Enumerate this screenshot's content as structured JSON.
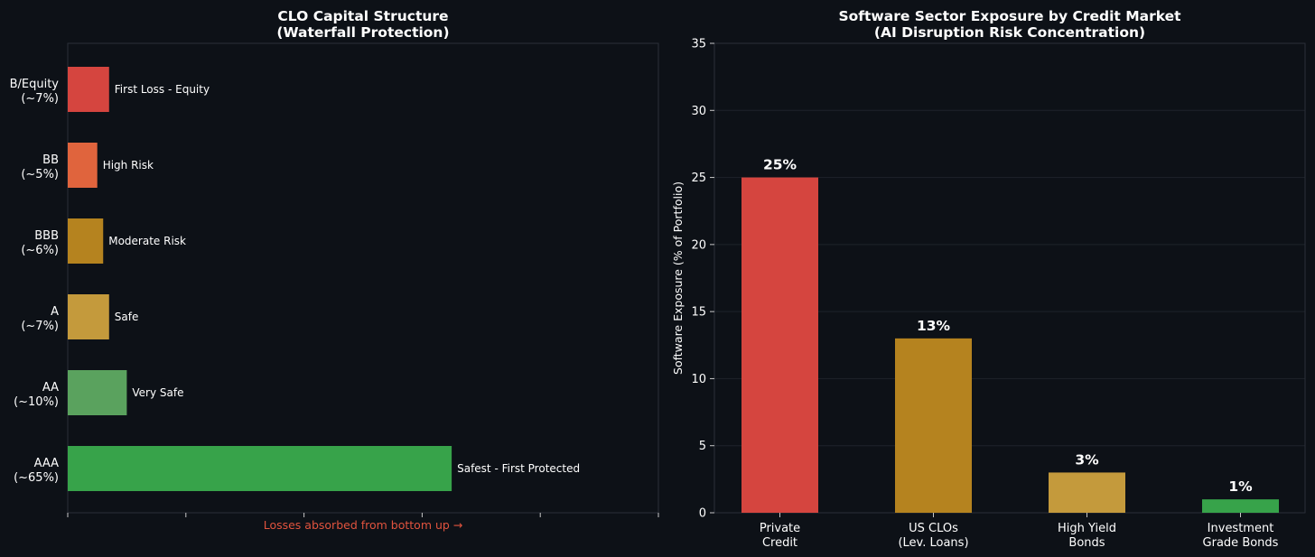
{
  "chart_data": [
    {
      "type": "bar",
      "orientation": "horizontal",
      "title": [
        "CLO Capital Structure",
        "(Waterfall Protection)"
      ],
      "categories": [
        [
          "AAA",
          "(~65%)"
        ],
        [
          "AA",
          "(~10%)"
        ],
        [
          "A",
          "(~7%)"
        ],
        [
          "BBB",
          "(~6%)"
        ],
        [
          "BB",
          "(~5%)"
        ],
        [
          "B/Equity",
          "(~7%)"
        ]
      ],
      "values": [
        65,
        10,
        7,
        6,
        5,
        7
      ],
      "annotations": [
        "Safest - First Protected",
        "Very Safe",
        "Safe",
        "Moderate Risk",
        "High Risk",
        "First Loss - Equity"
      ],
      "colors": [
        "#37a34a",
        "#5aa25e",
        "#c49a3c",
        "#b5831f",
        "#e0643d",
        "#d5453f"
      ],
      "xlim": [
        0,
        100
      ],
      "xticks": [
        0,
        20,
        40,
        60,
        80,
        100
      ],
      "xlabel": "Losses absorbed from bottom up →",
      "xlabel_color": "#e0533e"
    },
    {
      "type": "bar",
      "title": [
        "Software Sector Exposure by Credit Market",
        "(AI Disruption Risk Concentration)"
      ],
      "categories": [
        [
          "Private",
          "Credit"
        ],
        [
          "US CLOs",
          "(Lev. Loans)"
        ],
        [
          "High Yield",
          "Bonds"
        ],
        [
          "Investment",
          "Grade Bonds"
        ]
      ],
      "values": [
        25,
        13,
        3,
        1
      ],
      "value_labels": [
        "25%",
        "13%",
        "3%",
        "1%"
      ],
      "colors": [
        "#d5453f",
        "#b5831f",
        "#c49a3c",
        "#37a34a"
      ],
      "ylabel": "Software Exposure (% of Portfolio)",
      "ylim": [
        0,
        35
      ],
      "yticks": [
        "0",
        "5",
        "10",
        "15",
        "20",
        "25",
        "30",
        "35"
      ],
      "grid": true
    }
  ]
}
